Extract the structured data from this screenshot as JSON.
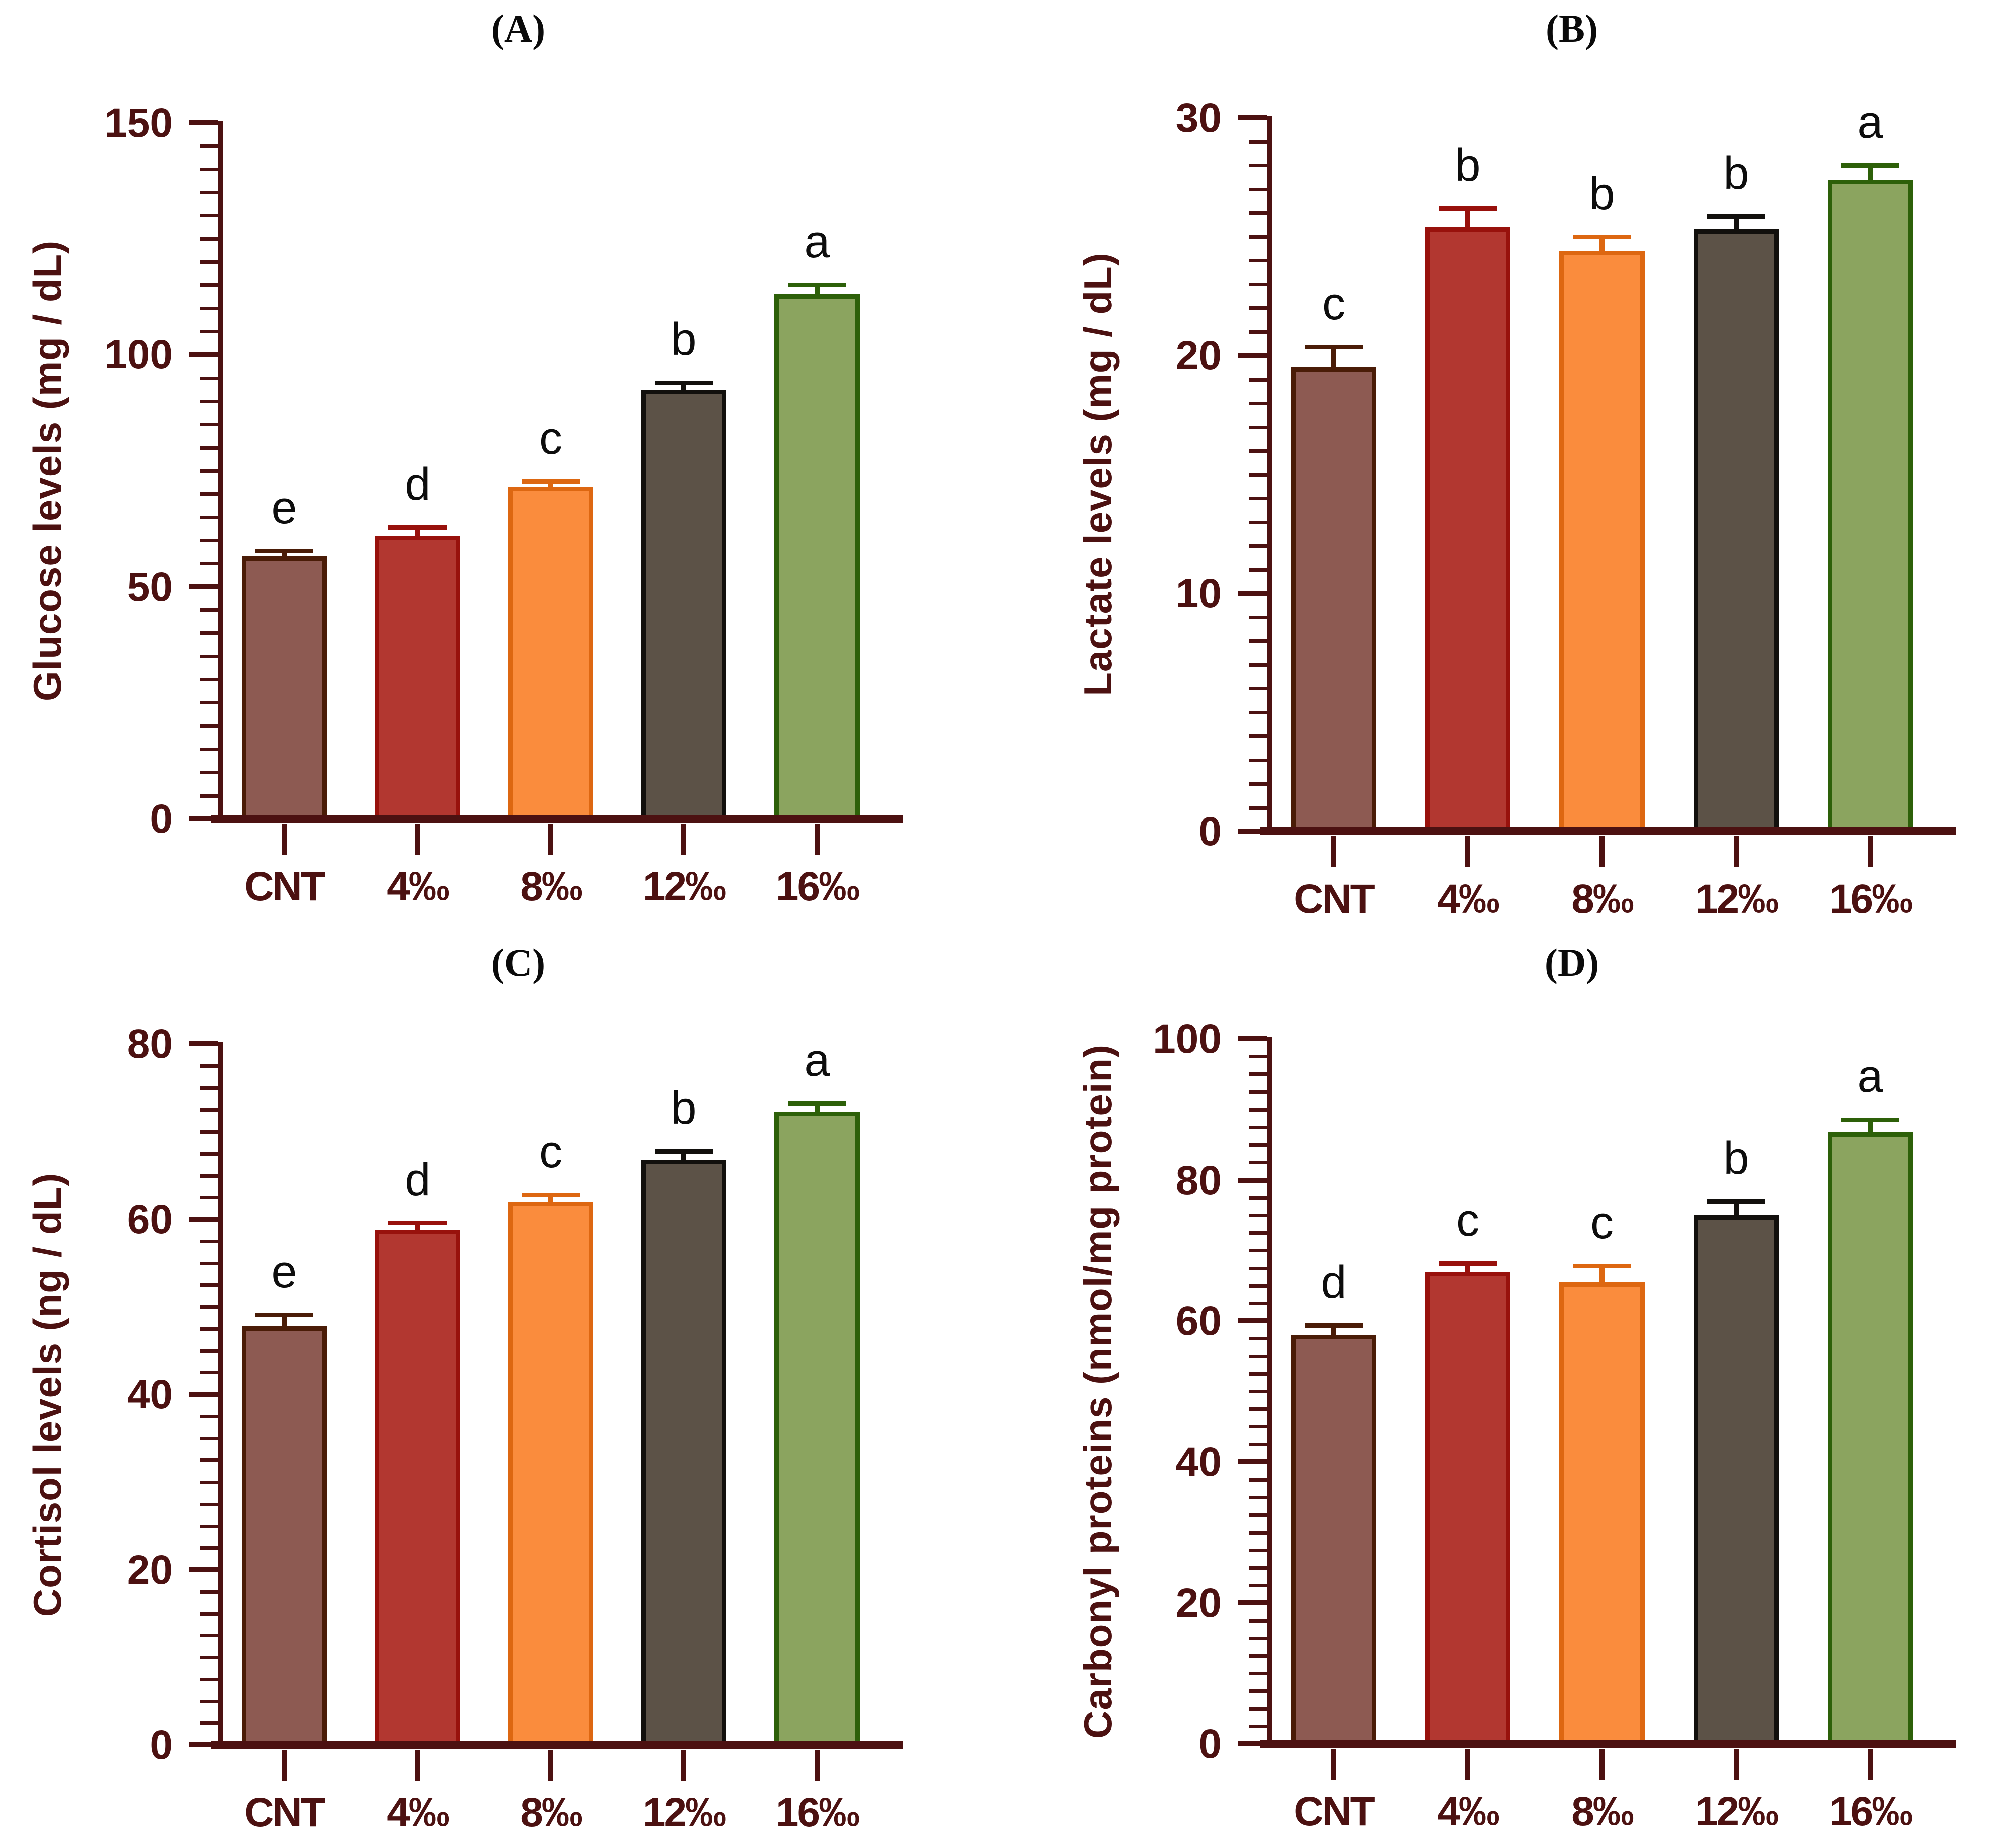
{
  "figure": {
    "background": "#ffffff",
    "axis_color": "#4C1111",
    "tick_label_color": "#4C1111",
    "category_label_color": "#4C1111",
    "letter_color": "#0D0D0D",
    "title_color": "#0A0A0A"
  },
  "bar_styles": [
    {
      "category": "CNT",
      "fill": "#8D5A52",
      "stroke": "#4A1C07"
    },
    {
      "category": "4‰",
      "fill": "#B23730",
      "stroke": "#98110C"
    },
    {
      "category": "8‰",
      "fill": "#FA8C3D",
      "stroke": "#DD6711"
    },
    {
      "category": "12‰",
      "fill": "#5C5247",
      "stroke": "#12100D"
    },
    {
      "category": "16‰",
      "fill": "#8BA45F",
      "stroke": "#2D6009"
    }
  ],
  "chart_data": [
    {
      "id": "A",
      "type": "bar",
      "title": "(A)",
      "ylabel": "Glucose levels (mg / dL)",
      "xlabel": "",
      "ylim": [
        0,
        150
      ],
      "major_tick_step": 50,
      "minor_tick_step": 5,
      "grid": false,
      "legend": false,
      "categories": [
        "CNT",
        "4‰",
        "8‰",
        "12‰",
        "16‰"
      ],
      "values": [
        56.5,
        61,
        71.5,
        92.5,
        113
      ],
      "errors": [
        1.2,
        1.8,
        1.2,
        1.5,
        2.0
      ],
      "letters": [
        "e",
        "d",
        "c",
        "b",
        "a"
      ]
    },
    {
      "id": "B",
      "type": "bar",
      "title": "(B)",
      "ylabel": "Lactate levels (mg / dL)",
      "xlabel": "",
      "ylim": [
        0,
        30
      ],
      "major_tick_step": 10,
      "minor_tick_step": 1,
      "grid": false,
      "legend": false,
      "categories": [
        "CNT",
        "4‰",
        "8‰",
        "12‰",
        "16‰"
      ],
      "values": [
        19.5,
        25.4,
        24.4,
        25.3,
        27.4
      ],
      "errors": [
        0.85,
        0.8,
        0.6,
        0.55,
        0.6
      ],
      "letters": [
        "c",
        "b",
        "b",
        "b",
        "a"
      ]
    },
    {
      "id": "C",
      "type": "bar",
      "title": "(C)",
      "ylabel": "Cortisol levels (ng / dL)",
      "xlabel": "",
      "ylim": [
        0,
        80
      ],
      "major_tick_step": 20,
      "minor_tick_step": 2.5,
      "grid": false,
      "legend": false,
      "categories": [
        "CNT",
        "4‰",
        "8‰",
        "12‰",
        "16‰"
      ],
      "values": [
        47.8,
        58.8,
        62,
        66.8,
        72.3
      ],
      "errors": [
        1.3,
        0.8,
        0.8,
        1.0,
        0.9
      ],
      "letters": [
        "e",
        "d",
        "c",
        "b",
        "a"
      ]
    },
    {
      "id": "D",
      "type": "bar",
      "title": "(D)",
      "ylabel": "Carbonyl proteins (nmol/mg protein)",
      "xlabel": "",
      "ylim": [
        0,
        100
      ],
      "major_tick_step": 20,
      "minor_tick_step": 2.5,
      "grid": false,
      "legend": false,
      "categories": [
        "CNT",
        "4‰",
        "8‰",
        "12‰",
        "16‰"
      ],
      "values": [
        58,
        67,
        65.5,
        75,
        86.8
      ],
      "errors": [
        1.4,
        1.2,
        2.3,
        2.0,
        1.8
      ],
      "letters": [
        "d",
        "c",
        "c",
        "b",
        "a"
      ]
    }
  ]
}
